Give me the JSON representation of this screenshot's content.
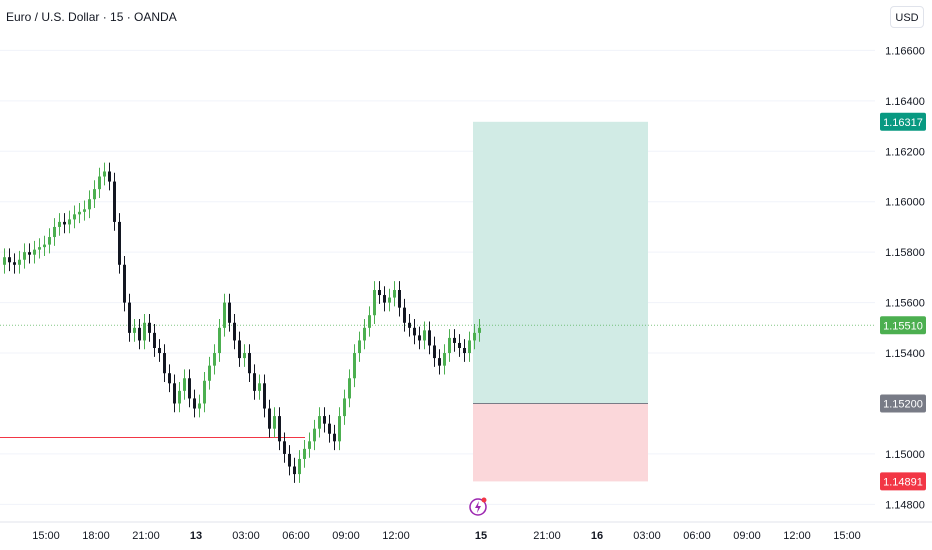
{
  "header": {
    "symbol_title": "Euro / U.S. Dollar · 15 · OANDA",
    "currency_button": "USD"
  },
  "price_scale": {
    "ticks": [
      "1.16600",
      "1.16400",
      "1.16200",
      "1.16000",
      "1.15800",
      "1.15600",
      "1.15400",
      "1.15000",
      "1.14800"
    ],
    "tick_values": [
      1.166,
      1.164,
      1.162,
      1.16,
      1.158,
      1.156,
      1.154,
      1.15,
      1.148
    ],
    "range": [
      1.1473,
      1.168
    ],
    "labels": [
      {
        "value": 1.16317,
        "text": "1.16317",
        "color": "#089981"
      },
      {
        "value": 1.1551,
        "text": "1.15510",
        "color": "#4caf50"
      },
      {
        "value": 1.152,
        "text": "1.15200",
        "color": "#787b86"
      },
      {
        "value": 1.14891,
        "text": "1.14891",
        "color": "#f23645"
      }
    ]
  },
  "time_axis": {
    "labels": [
      "15:00",
      "18:00",
      "21:00",
      "13",
      "03:00",
      "06:00",
      "09:00",
      "12:00",
      "15",
      "21:00",
      "16",
      "03:00",
      "06:00",
      "09:00",
      "12:00",
      "15:00"
    ],
    "bold_labels": [
      "13",
      "15",
      "16"
    ]
  },
  "position_tool": {
    "entry": 1.152,
    "target": 1.16317,
    "stop": 1.14891,
    "profit_color": "#d1ebe5",
    "loss_color": "#fbd7da"
  },
  "horizontal_line": {
    "price": 1.15065,
    "color": "#f23645"
  },
  "current_price_line": {
    "price": 1.1551,
    "color": "#4caf50"
  },
  "colors": {
    "up": "#4caf50",
    "down": "#131722",
    "grid": "#f0f3fa",
    "text": "#131722"
  },
  "chart_data": {
    "type": "candlestick",
    "interval": "15",
    "symbol": "EUR/USD",
    "ylim": [
      1.1473,
      1.168
    ],
    "close_path": [
      1.1578,
      1.1576,
      1.1575,
      1.1577,
      1.158,
      1.1579,
      1.1581,
      1.1582,
      1.1583,
      1.1586,
      1.159,
      1.1592,
      1.1591,
      1.1593,
      1.1595,
      1.1596,
      1.1597,
      1.1601,
      1.1605,
      1.161,
      1.1612,
      1.1608,
      1.1592,
      1.1575,
      1.156,
      1.1548,
      1.155,
      1.1545,
      1.1552,
      1.1548,
      1.1542,
      1.154,
      1.1532,
      1.1528,
      1.152,
      1.1525,
      1.153,
      1.1522,
      1.1518,
      1.152,
      1.1529,
      1.1535,
      1.154,
      1.155,
      1.156,
      1.1552,
      1.1545,
      1.1538,
      1.154,
      1.1532,
      1.1525,
      1.1528,
      1.1518,
      1.151,
      1.1515,
      1.1505,
      1.15,
      1.1495,
      1.1492,
      1.1498,
      1.1502,
      1.1505,
      1.151,
      1.1515,
      1.1512,
      1.1508,
      1.1505,
      1.1515,
      1.1522,
      1.153,
      1.154,
      1.1545,
      1.155,
      1.1555,
      1.1565,
      1.1563,
      1.156,
      1.1562,
      1.1565,
      1.1558,
      1.1552,
      1.155,
      1.1547,
      1.1545,
      1.1549,
      1.1543,
      1.1538,
      1.1535,
      1.154,
      1.1546,
      1.1544,
      1.1542,
      1.154,
      1.1545,
      1.1548,
      1.155
    ]
  }
}
